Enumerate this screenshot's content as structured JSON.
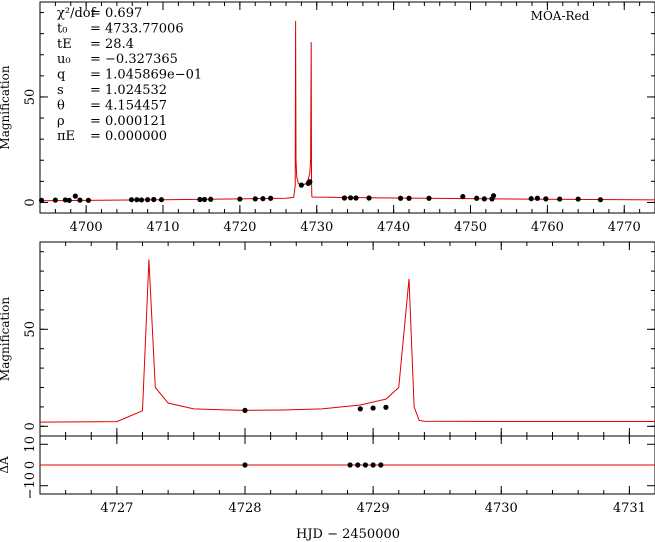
{
  "chart_data": [
    {
      "type": "line",
      "title": "",
      "label": "MOA-Red",
      "xlabel": "",
      "ylabel": "Magnification",
      "xlim": [
        4694,
        4774
      ],
      "ylim": [
        -5,
        95
      ],
      "xticks": [
        4700,
        4710,
        4720,
        4730,
        4740,
        4750,
        4760,
        4770
      ],
      "yticks": [
        0,
        50
      ],
      "grid": false,
      "params": [
        {
          "sym": "χ²/dof",
          "val": "= 0.697"
        },
        {
          "sym": "t₀",
          "val": "= 4733.77006"
        },
        {
          "sym": "tE",
          "val": "= 28.4"
        },
        {
          "sym": "u₀",
          "val": "= −0.327365"
        },
        {
          "sym": "q",
          "val": "= 1.045869e−01"
        },
        {
          "sym": "s",
          "val": "= 1.024532"
        },
        {
          "sym": "θ",
          "val": "= 4.154457"
        },
        {
          "sym": "ρ",
          "val": "= 0.000121"
        },
        {
          "sym": "πE",
          "val": "= 0.000000"
        }
      ],
      "model": {
        "name": "model",
        "color": "#e00000",
        "x": [
          4694,
          4700,
          4710,
          4720,
          4726,
          4727.0,
          4727.2,
          4727.25,
          4727.3,
          4727.4,
          4727.6,
          4727.8,
          4728.0,
          4728.3,
          4728.6,
          4728.9,
          4729.1,
          4729.2,
          4729.28,
          4729.32,
          4729.36,
          4729.4,
          4730,
          4735,
          4740,
          4750,
          4760,
          4774
        ],
        "y": [
          0.8,
          1.0,
          1.3,
          1.7,
          2.0,
          2.4,
          8,
          86,
          20,
          12,
          9,
          8.5,
          8.2,
          8.4,
          9,
          11,
          14,
          20,
          76,
          10,
          3,
          2.6,
          2.5,
          2.3,
          2.1,
          1.8,
          1.5,
          1.2
        ]
      },
      "points": {
        "name": "MOA-Red",
        "color": "#000000",
        "x": [
          4694.2,
          4696.0,
          4697.3,
          4697.8,
          4698.6,
          4699.2,
          4700.3,
          4705.9,
          4706.6,
          4707.2,
          4708.0,
          4708.8,
          4709.8,
          4714.8,
          4715.4,
          4716.2,
          4720.0,
          4722.0,
          4723.0,
          4724.0,
          4728.0,
          4728.9,
          4729.0,
          4729.1,
          4733.6,
          4734.4,
          4735.1,
          4736.8,
          4740.9,
          4742.0,
          4744.6,
          4749.0,
          4750.8,
          4751.8,
          4752.8,
          4753.0,
          4757.9,
          4758.7,
          4759.8,
          4761.6,
          4764.0,
          4766.9
        ],
        "y": [
          1.0,
          1.1,
          1.2,
          1.0,
          3.0,
          1.1,
          1.0,
          1.3,
          1.3,
          1.2,
          1.3,
          1.4,
          1.3,
          1.4,
          1.4,
          1.5,
          1.6,
          1.7,
          1.8,
          2.0,
          8.2,
          9.0,
          9.4,
          9.8,
          2.1,
          2.2,
          2.1,
          2.1,
          2.0,
          2.0,
          2.0,
          2.8,
          2.0,
          1.7,
          1.7,
          3.2,
          1.8,
          2.0,
          1.7,
          1.6,
          1.6,
          1.3
        ]
      }
    },
    {
      "type": "line",
      "title": "",
      "xlabel": "",
      "ylabel": "Magnification",
      "xlim": [
        4726.4,
        4731.2
      ],
      "ylim": [
        -5,
        95
      ],
      "xticks": [
        4727,
        4728,
        4729,
        4730,
        4731
      ],
      "yticks": [
        0,
        50
      ],
      "grid": false
    },
    {
      "type": "scatter",
      "title": "",
      "xlabel": "HJD − 2450000",
      "ylabel": "ΔA",
      "xlim": [
        4726.4,
        4731.2
      ],
      "ylim": [
        -14,
        14
      ],
      "xticks": [
        4727,
        4728,
        4729,
        4730,
        4731
      ],
      "yticks": [
        10,
        0,
        -10
      ],
      "grid": false,
      "residuals": {
        "name": "residuals",
        "x": [
          4728.0,
          4728.82,
          4728.88,
          4728.94,
          4729.0,
          4729.06
        ],
        "y": [
          0,
          0,
          0,
          0,
          0,
          0
        ]
      }
    }
  ]
}
